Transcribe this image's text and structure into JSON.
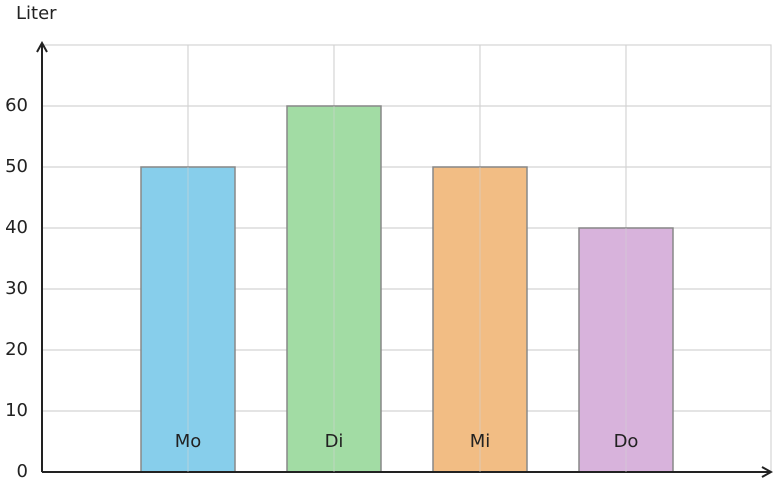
{
  "chart_data": {
    "type": "bar",
    "y_label": "Liter",
    "categories": [
      "Mo",
      "Di",
      "Mi",
      "Do"
    ],
    "values": [
      50,
      60,
      50,
      40
    ],
    "colors": [
      "#87ceeb",
      "#a2dca4",
      "#f2bd84",
      "#d8b3dc"
    ],
    "ylim": [
      0,
      70
    ],
    "yticks": [
      0,
      10,
      20,
      30,
      40,
      50,
      60
    ],
    "grid": true
  }
}
